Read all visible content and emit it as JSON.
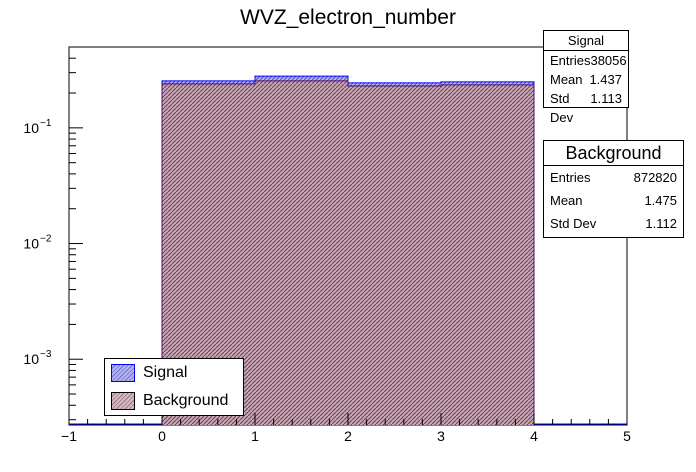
{
  "chart_data": {
    "type": "bar",
    "title": "WVZ_electron_number",
    "xlabel": "",
    "ylabel": "",
    "xlim": [
      -1,
      5
    ],
    "ylim": [
      0.00027,
      0.5
    ],
    "log_y": true,
    "x_ticks": [
      "−1",
      "0",
      "1",
      "2",
      "3",
      "4",
      "5"
    ],
    "y_ticks": [
      {
        "value": 0.1,
        "base": "10",
        "exp": "−1"
      },
      {
        "value": 0.01,
        "base": "10",
        "exp": "−2"
      },
      {
        "value": 0.001,
        "base": "10",
        "exp": "−3"
      }
    ],
    "bins": [
      [
        0,
        1
      ],
      [
        1,
        2
      ],
      [
        2,
        3
      ],
      [
        3,
        4
      ]
    ],
    "series": [
      {
        "name": "Signal",
        "values": [
          0.255,
          0.28,
          0.245,
          0.25
        ],
        "color": "#0000ff",
        "fill": "#aaaaee"
      },
      {
        "name": "Background",
        "values": [
          0.24,
          0.255,
          0.23,
          0.235
        ],
        "color": "#4d0a7a",
        "fill": "#c49cac"
      }
    ],
    "grid": false
  },
  "stats": {
    "signal": {
      "title": "Signal",
      "rows": [
        {
          "label": "Entries",
          "value": "38056"
        },
        {
          "label": "Mean",
          "value": "1.437"
        },
        {
          "label": "Std Dev",
          "value": "1.113"
        }
      ]
    },
    "background": {
      "title": "Background",
      "rows": [
        {
          "label": "Entries",
          "value": "872820"
        },
        {
          "label": "Mean",
          "value": "1.475"
        },
        {
          "label": "Std Dev",
          "value": "1.112"
        }
      ]
    }
  },
  "legend": {
    "placement": "bottom-left",
    "items": [
      {
        "label": "Signal",
        "color": "#0000ff",
        "fill": "#aaaaee"
      },
      {
        "label": "Background",
        "color": "#4d0a7a",
        "fill": "#c49cac"
      }
    ]
  }
}
